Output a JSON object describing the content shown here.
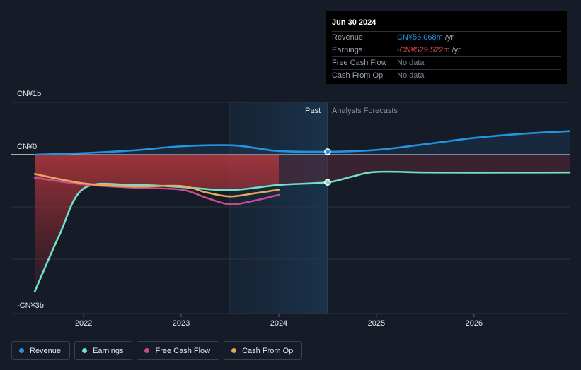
{
  "chart_data": {
    "type": "line",
    "title": "",
    "y_axis": {
      "top_label": "CN¥1b",
      "zero_label": "CN¥0",
      "bottom_label": "-CN¥3b",
      "ylim": [
        -3.0,
        1.0
      ]
    },
    "x_axis": {
      "ticks": [
        "2022",
        "2023",
        "2024",
        "2025",
        "2026"
      ],
      "xlim": [
        2021.26,
        2026.98
      ]
    },
    "regions": {
      "past_label": "Past",
      "forecast_label": "Analysts Forecasts",
      "past_start": 2023.5,
      "divider": 2024.5
    },
    "series": [
      {
        "name": "Revenue",
        "color": "#2394df",
        "points": [
          [
            2021.5,
            0.0
          ],
          [
            2022.0,
            0.03
          ],
          [
            2022.5,
            0.08
          ],
          [
            2023.0,
            0.16
          ],
          [
            2023.5,
            0.18
          ],
          [
            2023.75,
            0.13
          ],
          [
            2024.0,
            0.07
          ],
          [
            2024.5,
            0.056
          ],
          [
            2025.0,
            0.09
          ],
          [
            2025.5,
            0.2
          ],
          [
            2026.0,
            0.32
          ],
          [
            2026.5,
            0.4
          ],
          [
            2026.98,
            0.45
          ]
        ]
      },
      {
        "name": "Earnings",
        "color": "#6fe2c9",
        "points": [
          [
            2021.5,
            -2.62
          ],
          [
            2021.75,
            -1.55
          ],
          [
            2022.0,
            -0.65
          ],
          [
            2022.5,
            -0.58
          ],
          [
            2023.0,
            -0.62
          ],
          [
            2023.5,
            -0.68
          ],
          [
            2024.0,
            -0.58
          ],
          [
            2024.5,
            -0.53
          ],
          [
            2024.75,
            -0.42
          ],
          [
            2025.0,
            -0.33
          ],
          [
            2025.5,
            -0.34
          ],
          [
            2026.0,
            -0.345
          ],
          [
            2026.98,
            -0.34
          ]
        ]
      },
      {
        "name": "Free Cash Flow",
        "color": "#c94c8e",
        "points": [
          [
            2021.5,
            -0.44
          ],
          [
            2022.0,
            -0.57
          ],
          [
            2022.5,
            -0.63
          ],
          [
            2023.0,
            -0.67
          ],
          [
            2023.25,
            -0.82
          ],
          [
            2023.5,
            -0.95
          ],
          [
            2023.75,
            -0.88
          ],
          [
            2024.0,
            -0.77
          ]
        ]
      },
      {
        "name": "Cash From Op",
        "color": "#e6a85a",
        "points": [
          [
            2021.5,
            -0.37
          ],
          [
            2022.0,
            -0.55
          ],
          [
            2022.5,
            -0.61
          ],
          [
            2023.0,
            -0.6
          ],
          [
            2023.25,
            -0.72
          ],
          [
            2023.5,
            -0.8
          ],
          [
            2023.75,
            -0.74
          ],
          [
            2024.0,
            -0.67
          ]
        ]
      }
    ],
    "highlight_points": [
      {
        "series": "Revenue",
        "x": 2024.5,
        "y": 0.056
      },
      {
        "series": "Earnings",
        "x": 2024.5,
        "y": -0.53
      }
    ]
  },
  "tooltip": {
    "date": "Jun 30 2024",
    "rows": [
      {
        "key": "Revenue",
        "value": "CN¥56.068m",
        "unit": "/yr",
        "color": "#2394df"
      },
      {
        "key": "Earnings",
        "value": "-CN¥529.522m",
        "unit": "/yr",
        "color": "#e84a4a"
      },
      {
        "key": "Free Cash Flow",
        "value": "No data",
        "unit": "",
        "color": "#7a818b"
      },
      {
        "key": "Cash From Op",
        "value": "No data",
        "unit": "",
        "color": "#7a818b"
      }
    ]
  },
  "legend": [
    {
      "label": "Revenue",
      "color": "#2394df"
    },
    {
      "label": "Earnings",
      "color": "#6fe2c9"
    },
    {
      "label": "Free Cash Flow",
      "color": "#c94c8e"
    },
    {
      "label": "Cash From Op",
      "color": "#e6a85a"
    }
  ]
}
